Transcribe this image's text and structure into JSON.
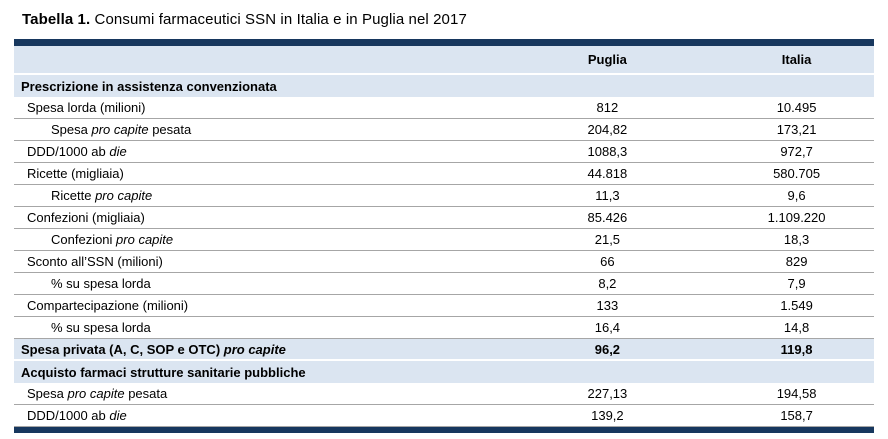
{
  "title": {
    "prefix": "Tabella 1.",
    "text": " Consumi farmaceutici SSN in Italia e in Puglia nel 2017"
  },
  "colors": {
    "header_bar": "#17375E",
    "band_fill": "#DBE5F1",
    "row_border": "#A6A6A6"
  },
  "table": {
    "columns": {
      "puglia": "Puglia",
      "italia": "Italia"
    },
    "rows": [
      {
        "type": "section",
        "indent": 0,
        "label": [
          {
            "t": "Prescrizione in assistenza convenzionata",
            "i": false
          }
        ],
        "puglia": "",
        "italia": ""
      },
      {
        "type": "data",
        "indent": 1,
        "label": [
          {
            "t": "Spesa lorda (milioni)",
            "i": false
          }
        ],
        "puglia": "812",
        "italia": "10.495"
      },
      {
        "type": "data",
        "indent": 2,
        "label": [
          {
            "t": "Spesa ",
            "i": false
          },
          {
            "t": "pro capite",
            "i": true
          },
          {
            "t": " pesata",
            "i": false
          }
        ],
        "puglia": "204,82",
        "italia": "173,21"
      },
      {
        "type": "data",
        "indent": 1,
        "label": [
          {
            "t": "DDD/1000 ab ",
            "i": false
          },
          {
            "t": "die",
            "i": true
          }
        ],
        "puglia": "1088,3",
        "italia": "972,7"
      },
      {
        "type": "data",
        "indent": 1,
        "label": [
          {
            "t": "Ricette (migliaia)",
            "i": false
          }
        ],
        "puglia": "44.818",
        "italia": "580.705"
      },
      {
        "type": "data",
        "indent": 2,
        "label": [
          {
            "t": "Ricette ",
            "i": false
          },
          {
            "t": "pro capite",
            "i": true
          }
        ],
        "puglia": "11,3",
        "italia": "9,6"
      },
      {
        "type": "data",
        "indent": 1,
        "label": [
          {
            "t": "Confezioni (migliaia)",
            "i": false
          }
        ],
        "puglia": "85.426",
        "italia": "1.109.220"
      },
      {
        "type": "data",
        "indent": 2,
        "label": [
          {
            "t": "Confezioni ",
            "i": false
          },
          {
            "t": "pro capite",
            "i": true
          }
        ],
        "puglia": "21,5",
        "italia": "18,3"
      },
      {
        "type": "data",
        "indent": 1,
        "label": [
          {
            "t": "Sconto all’SSN (milioni)",
            "i": false
          }
        ],
        "puglia": "66",
        "italia": "829"
      },
      {
        "type": "data",
        "indent": 2,
        "label": [
          {
            "t": "% su spesa lorda",
            "i": false
          }
        ],
        "puglia": "8,2",
        "italia": "7,9"
      },
      {
        "type": "data",
        "indent": 1,
        "label": [
          {
            "t": "Compartecipazione (milioni)",
            "i": false
          }
        ],
        "puglia": "133",
        "italia": "1.549"
      },
      {
        "type": "data",
        "indent": 2,
        "label": [
          {
            "t": "% su spesa lorda",
            "i": false
          }
        ],
        "puglia": "16,4",
        "italia": "14,8"
      },
      {
        "type": "highlight",
        "indent": 0,
        "label": [
          {
            "t": "Spesa privata (A, C, SOP e OTC) ",
            "i": false
          },
          {
            "t": "pro capite",
            "i": true
          }
        ],
        "puglia": "96,2",
        "italia": "119,8"
      },
      {
        "type": "section",
        "indent": 0,
        "label": [
          {
            "t": "Acquisto farmaci strutture sanitarie pubbliche",
            "i": false
          }
        ],
        "puglia": "",
        "italia": ""
      },
      {
        "type": "data",
        "indent": 1,
        "label": [
          {
            "t": "Spesa ",
            "i": false
          },
          {
            "t": "pro capite",
            "i": true
          },
          {
            "t": " pesata",
            "i": false
          }
        ],
        "puglia": "227,13",
        "italia": "194,58"
      },
      {
        "type": "data",
        "indent": 1,
        "label": [
          {
            "t": "DDD/1000 ab ",
            "i": false
          },
          {
            "t": "die",
            "i": true
          }
        ],
        "puglia": "139,2",
        "italia": "158,7"
      }
    ]
  }
}
